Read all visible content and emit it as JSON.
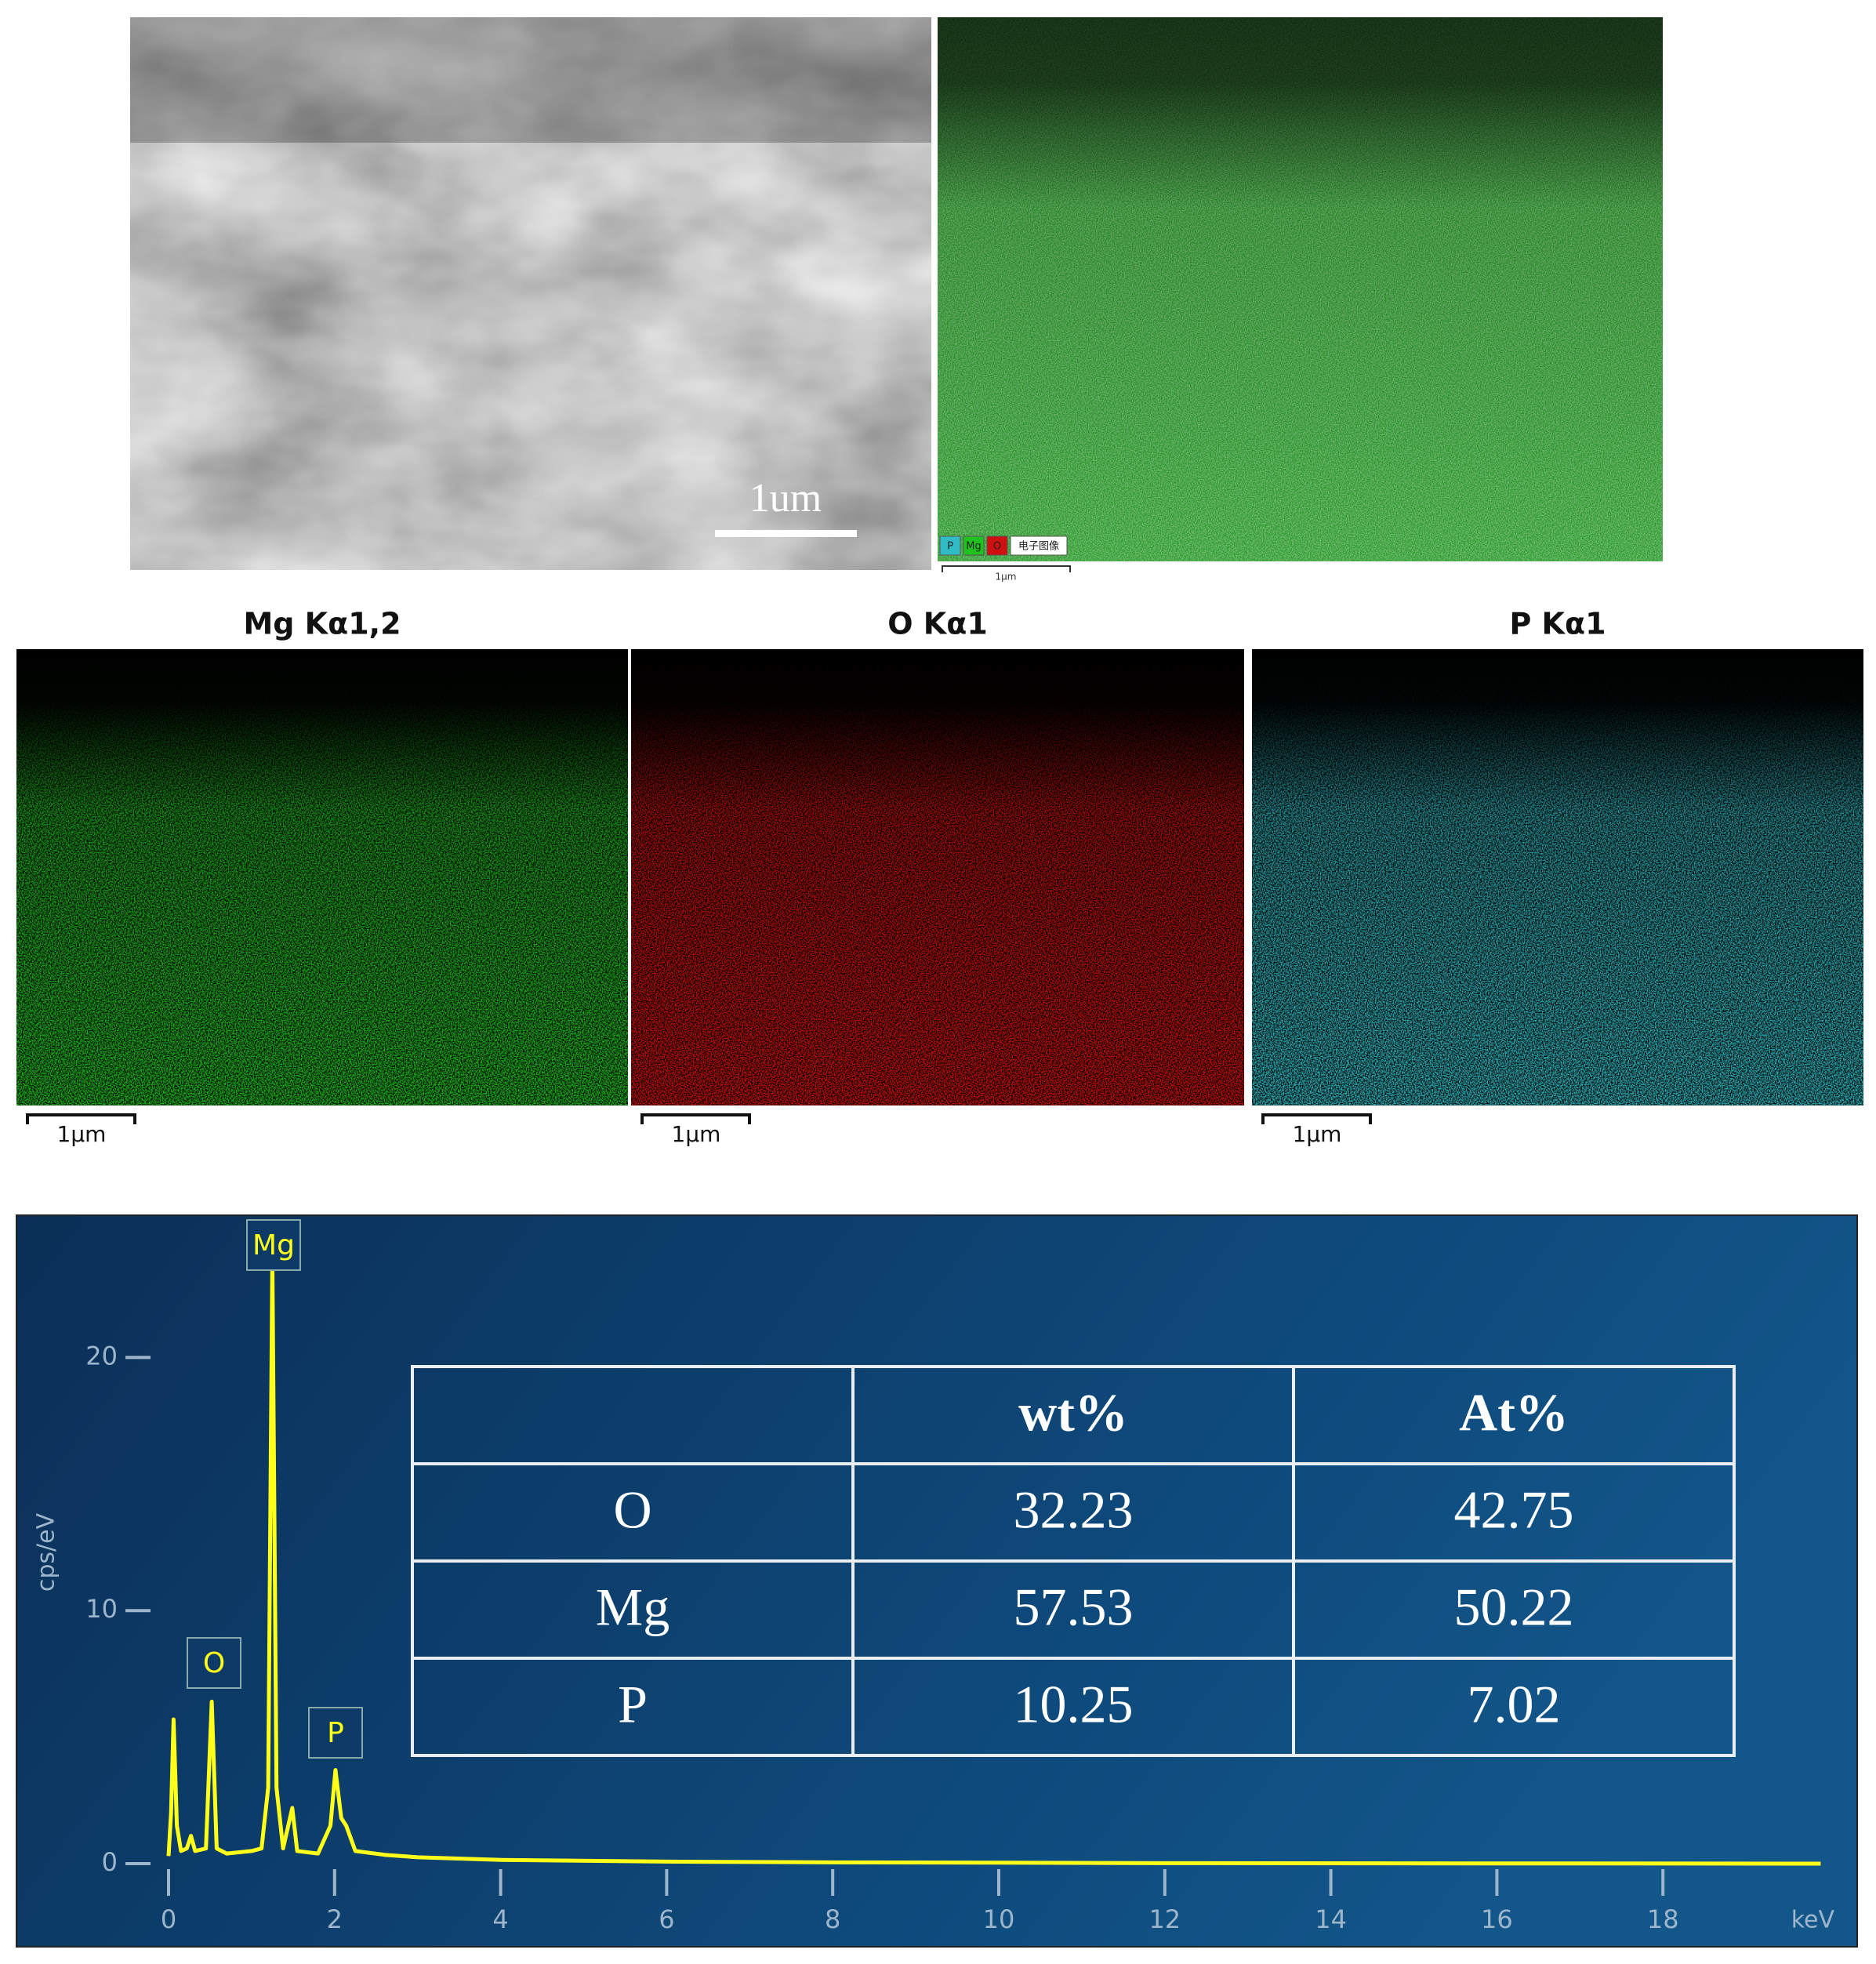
{
  "sem_image": {
    "scale_label": "1um"
  },
  "layered_image": {
    "legend": [
      "P",
      "Mg",
      "O",
      "电子图像"
    ],
    "scale_label": "1μm"
  },
  "maps": [
    {
      "title": "Mg Kα1,2",
      "scale_label": "1μm",
      "color": "#1fc21f"
    },
    {
      "title": "O Kα1",
      "scale_label": "1μm",
      "color": "#d01010"
    },
    {
      "title": "P Kα1",
      "scale_label": "1μm",
      "color": "#2fbcc4"
    }
  ],
  "chart_data": {
    "type": "line",
    "xlabel": "keV",
    "ylabel": "cps/eV",
    "color": "#ffff1a",
    "x": [
      0,
      0.03,
      0.06,
      0.1,
      0.15,
      0.22,
      0.27,
      0.32,
      0.45,
      0.52,
      0.58,
      0.7,
      1.0,
      1.12,
      1.2,
      1.25,
      1.3,
      1.38,
      1.49,
      1.55,
      1.8,
      1.95,
      2.01,
      2.08,
      2.14,
      2.25,
      2.6,
      3,
      4,
      6,
      8,
      10,
      12,
      16,
      19.9
    ],
    "values": [
      0.3,
      2,
      5.7,
      1.5,
      0.5,
      0.6,
      1.1,
      0.5,
      0.6,
      6.4,
      0.6,
      0.4,
      0.5,
      0.6,
      3,
      24,
      3,
      0.6,
      2.2,
      0.5,
      0.4,
      1.5,
      3.7,
      1.8,
      1.5,
      0.5,
      0.35,
      0.25,
      0.15,
      0.08,
      0.05,
      0.04,
      0.02,
      0.01,
      0
    ],
    "xlim": [
      0,
      20
    ],
    "ylim": [
      0,
      25
    ],
    "xticks": [
      0,
      2,
      4,
      6,
      8,
      10,
      12,
      14,
      16,
      18
    ],
    "yticks": [
      0,
      10,
      20
    ],
    "annotations": [
      "Mg",
      "O",
      "P"
    ]
  },
  "table": {
    "header": [
      "wt%",
      "At%"
    ],
    "rows": [
      [
        "O",
        32.23,
        42.75
      ],
      [
        "Mg",
        57.53,
        50.22
      ],
      [
        "P",
        10.25,
        7.02
      ]
    ]
  }
}
